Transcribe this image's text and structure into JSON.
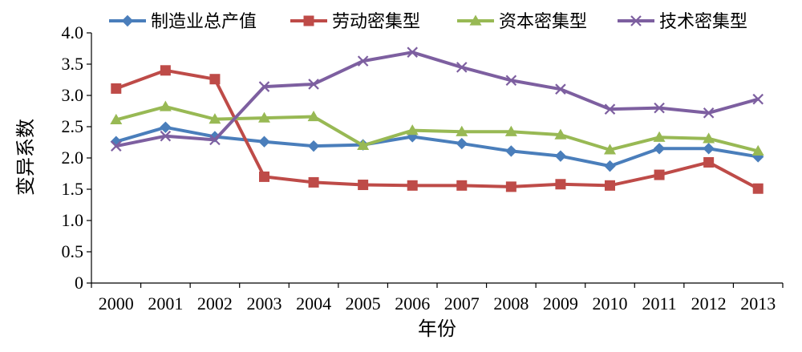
{
  "chart_data": {
    "type": "line",
    "xlabel": "年份",
    "ylabel": "变异系数",
    "ylim": [
      0,
      4.0
    ],
    "yticks": [
      "0",
      "0.5",
      "1.0",
      "1.5",
      "2.0",
      "2.5",
      "3.0",
      "3.5",
      "4.0"
    ],
    "categories": [
      "2000",
      "2001",
      "2002",
      "2003",
      "2004",
      "2005",
      "2006",
      "2007",
      "2008",
      "2009",
      "2010",
      "2011",
      "2012",
      "2013"
    ],
    "grid": false,
    "legend_position": "top",
    "series": [
      {
        "name": "制造业总产值",
        "color": "#4A7EBB",
        "marker": "diamond",
        "values": [
          2.26,
          2.49,
          2.34,
          2.26,
          2.19,
          2.21,
          2.34,
          2.23,
          2.11,
          2.03,
          1.87,
          2.15,
          2.15,
          2.02
        ]
      },
      {
        "name": "劳动密集型",
        "color": "#BE4B48",
        "marker": "square",
        "values": [
          3.11,
          3.4,
          3.26,
          1.7,
          1.61,
          1.57,
          1.56,
          1.56,
          1.54,
          1.58,
          1.56,
          1.73,
          1.93,
          1.51
        ]
      },
      {
        "name": "资本密集型",
        "color": "#98B954",
        "marker": "triangle",
        "values": [
          2.61,
          2.82,
          2.62,
          2.64,
          2.66,
          2.2,
          2.44,
          2.42,
          2.42,
          2.37,
          2.13,
          2.33,
          2.31,
          2.11
        ]
      },
      {
        "name": "技术密集型",
        "color": "#7D5FA0",
        "marker": "x",
        "values": [
          2.19,
          2.35,
          2.29,
          3.14,
          3.18,
          3.55,
          3.69,
          3.45,
          3.24,
          3.1,
          2.78,
          2.8,
          2.72,
          2.94
        ]
      }
    ]
  }
}
